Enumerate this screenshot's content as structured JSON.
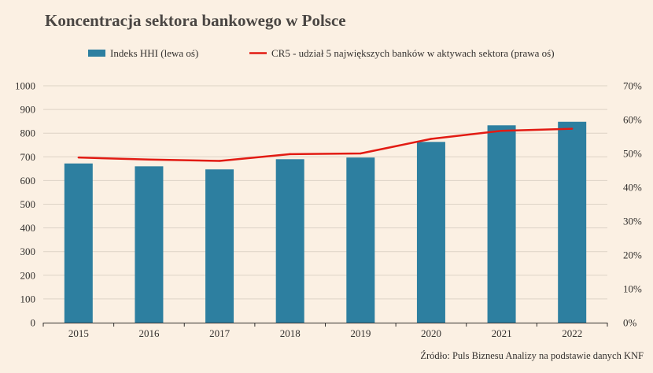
{
  "chart_data": {
    "type": "bar",
    "title": "Koncentracja sektora bankowego w Polsce",
    "categories": [
      "2015",
      "2016",
      "2017",
      "2018",
      "2019",
      "2020",
      "2021",
      "2022"
    ],
    "series": [
      {
        "name": "Indeks HHI (lewa oś)",
        "type": "bar",
        "axis": "left",
        "color": "#2d7fa0",
        "values": [
          672,
          660,
          647,
          690,
          697,
          763,
          833,
          848
        ]
      },
      {
        "name": "CR5 - udział 5 największych banków w aktywach sektora (prawa oś)",
        "type": "line",
        "axis": "right",
        "color": "#e21b13",
        "values": [
          48.8,
          48.2,
          47.8,
          49.8,
          50.0,
          54.3,
          56.7,
          57.3
        ]
      }
    ],
    "y_left": {
      "ylim": [
        0,
        1000
      ],
      "ticks": [
        "0",
        "100",
        "200",
        "300",
        "400",
        "500",
        "600",
        "700",
        "800",
        "900",
        "1000"
      ]
    },
    "y_right": {
      "ylim": [
        0,
        70
      ],
      "ticks": [
        "0%",
        "10%",
        "20%",
        "30%",
        "40%",
        "50%",
        "60%",
        "70%"
      ]
    },
    "grid": true,
    "legend_position": "top",
    "source": "Źródło: Puls Biznesu Analizy na podstawie danych KNF"
  }
}
